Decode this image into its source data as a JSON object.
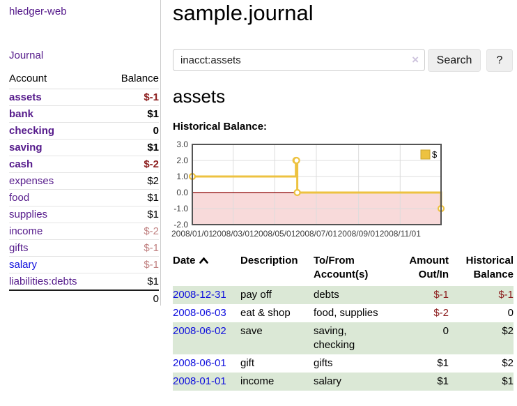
{
  "app": {
    "title": "hledger-web"
  },
  "sidebar": {
    "journal_link": "Journal",
    "accounts": {
      "header_account": "Account",
      "header_balance": "Balance",
      "rows": [
        {
          "name": "assets",
          "balance": "$-1",
          "indent": 1,
          "bold": true,
          "balance_style": "neg-strong",
          "link_style": "purple"
        },
        {
          "name": "bank",
          "balance": "$1",
          "indent": 2,
          "bold": true,
          "balance_style": "normal",
          "link_style": "purple"
        },
        {
          "name": "checking",
          "balance": "0",
          "indent": 3,
          "bold": true,
          "balance_style": "normal",
          "link_style": "purple"
        },
        {
          "name": "saving",
          "balance": "$1",
          "indent": 3,
          "bold": true,
          "balance_style": "normal",
          "link_style": "purple"
        },
        {
          "name": "cash",
          "balance": "$-2",
          "indent": 2,
          "bold": true,
          "balance_style": "neg-strong",
          "link_style": "purple"
        },
        {
          "name": "expenses",
          "balance": "$2",
          "indent": 1,
          "bold": false,
          "balance_style": "normal",
          "link_style": "purple"
        },
        {
          "name": "food",
          "balance": "$1",
          "indent": 2,
          "bold": false,
          "balance_style": "normal",
          "link_style": "purple"
        },
        {
          "name": "supplies",
          "balance": "$1",
          "indent": 2,
          "bold": false,
          "balance_style": "normal",
          "link_style": "purple"
        },
        {
          "name": "income",
          "balance": "$-2",
          "indent": 1,
          "bold": false,
          "balance_style": "neg-soft",
          "link_style": "purple"
        },
        {
          "name": "gifts",
          "balance": "$-1",
          "indent": 2,
          "bold": false,
          "balance_style": "neg-soft",
          "link_style": "purple"
        },
        {
          "name": "salary",
          "balance": "$-1",
          "indent": 2,
          "bold": false,
          "balance_style": "neg-soft",
          "link_style": "blue"
        },
        {
          "name": "liabilities:debts",
          "balance": "$1",
          "indent": 1,
          "bold": false,
          "balance_style": "normal",
          "link_style": "purple"
        }
      ],
      "total": "0"
    }
  },
  "header": {
    "title": "sample.journal"
  },
  "search": {
    "value": "inacct:assets",
    "clear_icon": "×",
    "button_label": "Search",
    "help_label": "?"
  },
  "account_page": {
    "title": "assets",
    "chart_label": "Historical Balance:"
  },
  "chart_data": {
    "type": "line",
    "title": "Historical Balance:",
    "step": true,
    "series": [
      {
        "name": "$",
        "color": "#edc240",
        "points": [
          {
            "date": "2008-01-01",
            "day": 0,
            "value": 1
          },
          {
            "date": "2008-06-01",
            "day": 152,
            "value": 2
          },
          {
            "date": "2008-06-02",
            "day": 153,
            "value": 2
          },
          {
            "date": "2008-06-03",
            "day": 154,
            "value": 0
          },
          {
            "date": "2008-12-31",
            "day": 365,
            "value": -1
          }
        ]
      }
    ],
    "x_ticks": [
      {
        "label": "2008/01/01",
        "day": 0
      },
      {
        "label": "2008/03/01",
        "day": 60
      },
      {
        "label": "2008/05/01",
        "day": 121
      },
      {
        "label": "2008/07/01",
        "day": 182
      },
      {
        "label": "2008/09/01",
        "day": 244
      },
      {
        "label": "2008/11/01",
        "day": 305
      }
    ],
    "y_ticks": [
      3.0,
      2.0,
      1.0,
      0.0,
      -1.0,
      -2.0
    ],
    "x_range_days": [
      0,
      365
    ],
    "ylim": [
      -2,
      3
    ],
    "legend": {
      "label": "$",
      "position": "top-right"
    },
    "grid": true,
    "colors": {
      "border": "#545454",
      "gridline": "#dcdcdc",
      "zero_line": "#8b0000",
      "negative_region": "#f8dada",
      "tick_text": "#3c3c3c"
    }
  },
  "register": {
    "headers": {
      "date": "Date",
      "description": "Description",
      "accounts": "To/From Account(s)",
      "amount": "Amount Out/In",
      "balance": "Historical Balance"
    },
    "rows": [
      {
        "date": "2008-12-31",
        "description": "pay off",
        "accounts": "debts",
        "amount": "$-1",
        "amount_style": "neg-strong",
        "balance": "$-1",
        "balance_style": "neg-strong",
        "shaded": true
      },
      {
        "date": "2008-06-03",
        "description": "eat & shop",
        "accounts": "food, supplies",
        "amount": "$-2",
        "amount_style": "neg-strong",
        "balance": "0",
        "balance_style": "normal",
        "shaded": false
      },
      {
        "date": "2008-06-02",
        "description": "save",
        "accounts": "saving, checking",
        "amount": "0",
        "amount_style": "normal",
        "balance": "$2",
        "balance_style": "normal",
        "shaded": true
      },
      {
        "date": "2008-06-01",
        "description": "gift",
        "accounts": "gifts",
        "amount": "$1",
        "amount_style": "normal",
        "balance": "$2",
        "balance_style": "normal",
        "shaded": false
      },
      {
        "date": "2008-01-01",
        "description": "income",
        "accounts": "salary",
        "amount": "$1",
        "amount_style": "normal",
        "balance": "$1",
        "balance_style": "normal",
        "shaded": true
      }
    ]
  },
  "colors": {
    "link_purple": "#551a8b",
    "link_blue": "#0f0fdd",
    "negative_strong": "#8b1c1c",
    "negative_soft": "#c08080",
    "row_green": "#dbe8d6",
    "series_gold": "#edc240"
  }
}
